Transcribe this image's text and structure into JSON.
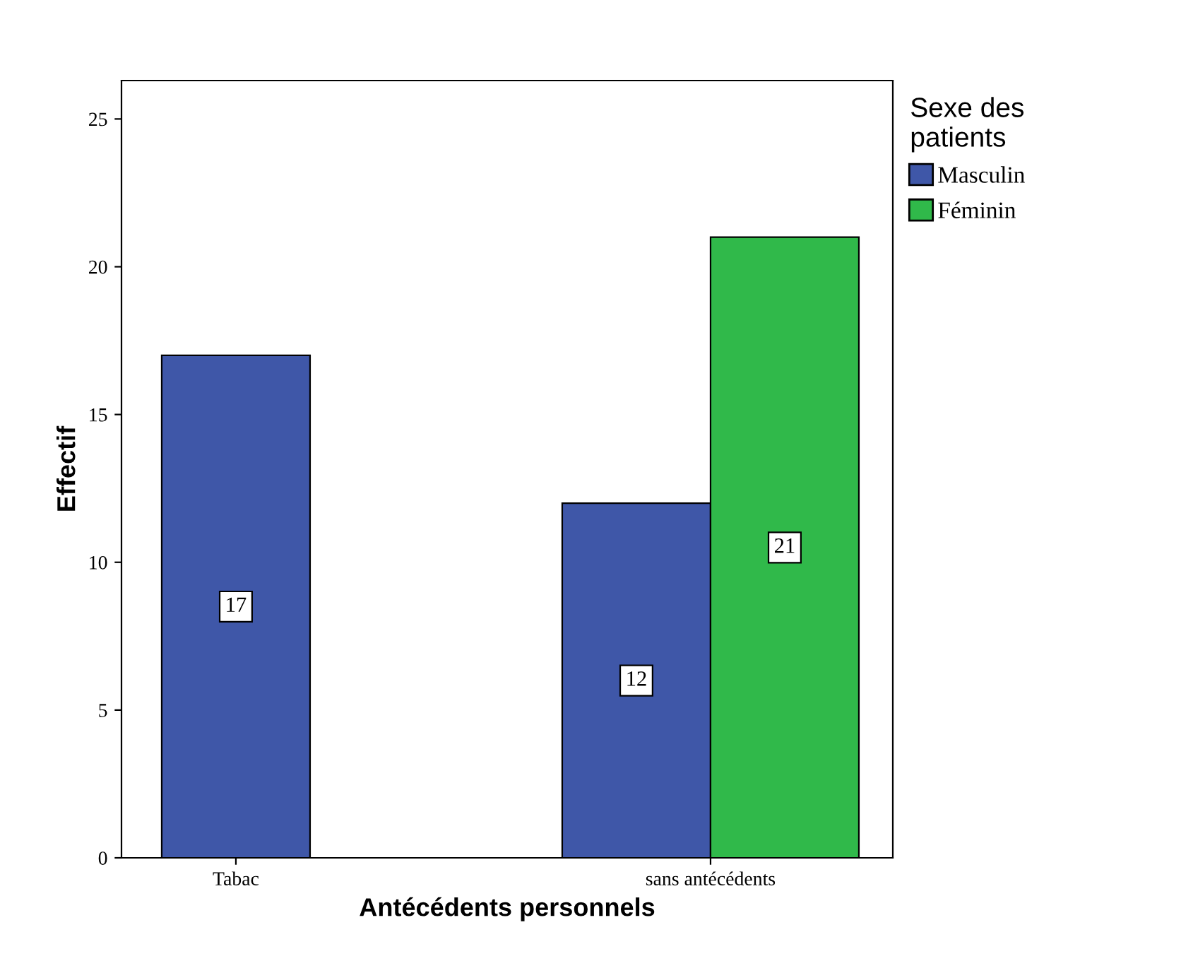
{
  "chart_data": {
    "type": "bar",
    "xlabel": "Antécédents personnels",
    "ylabel": "Effectif",
    "legend_title": "Sexe des\npatients",
    "categories": [
      "Tabac",
      "sans antécédents"
    ],
    "series": [
      {
        "name": "Masculin",
        "color": "#3f57a8",
        "values": [
          17,
          12
        ]
      },
      {
        "name": "Féminin",
        "color": "#30b94a",
        "values": [
          null,
          21
        ]
      }
    ],
    "ylim": [
      0,
      26.3
    ],
    "yticks": [
      0,
      5,
      10,
      15,
      20,
      25
    ],
    "data_labels": true,
    "grid": false,
    "legend": "top right"
  }
}
